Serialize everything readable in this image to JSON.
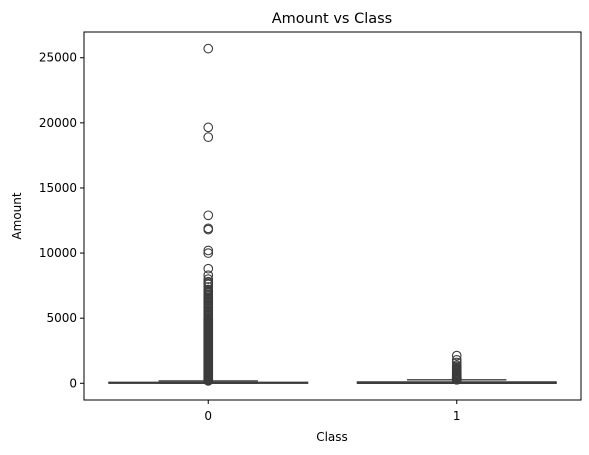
{
  "chart_data": {
    "type": "box",
    "title": "Amount vs Class",
    "xlabel": "Class",
    "ylabel": "Amount",
    "ylim": [
      -1284,
      26977
    ],
    "yticks": [
      0,
      5000,
      10000,
      15000,
      20000,
      25000
    ],
    "ytick_labels": [
      "0",
      "5000",
      "10000",
      "15000",
      "20000",
      "25000"
    ],
    "categories": [
      "0",
      "1"
    ],
    "grid": false,
    "boxes": [
      {
        "category": "0",
        "q1": 5.6,
        "median": 22,
        "q3": 77,
        "whisker_low": 0,
        "whisker_high": 185,
        "outliers": [
          186,
          200,
          250,
          300,
          350,
          400,
          450,
          500,
          550,
          600,
          650,
          700,
          750,
          800,
          850,
          900,
          950,
          1000,
          1050,
          1100,
          1150,
          1200,
          1250,
          1300,
          1350,
          1400,
          1450,
          1500,
          1550,
          1600,
          1650,
          1700,
          1750,
          1800,
          1850,
          1900,
          1950,
          2000,
          2050,
          2100,
          2150,
          2200,
          2250,
          2300,
          2350,
          2400,
          2450,
          2500,
          2550,
          2600,
          2650,
          2700,
          2750,
          2800,
          2850,
          2900,
          2950,
          3000,
          3050,
          3100,
          3150,
          3200,
          3250,
          3300,
          3350,
          3400,
          3450,
          3500,
          3550,
          3600,
          3650,
          3700,
          3750,
          3800,
          3850,
          3900,
          3950,
          4000,
          4050,
          4100,
          4150,
          4200,
          4250,
          4300,
          4350,
          4400,
          4450,
          4500,
          4550,
          4600,
          4650,
          4700,
          4750,
          4800,
          4850,
          4900,
          4950,
          5000,
          5100,
          5200,
          5300,
          5400,
          5500,
          5600,
          5700,
          5800,
          5900,
          6000,
          6100,
          6200,
          6300,
          6400,
          6500,
          6600,
          6700,
          6800,
          6900,
          7000,
          7100,
          7200,
          7400,
          7600,
          7700,
          7800,
          8000,
          8300,
          8800,
          10000,
          10200,
          11800,
          11900,
          12900,
          18900,
          19650,
          25700
        ]
      },
      {
        "category": "1",
        "q1": 1,
        "median": 9.3,
        "q3": 106,
        "whisker_low": 0,
        "whisker_high": 265,
        "outliers": [
          270,
          290,
          310,
          330,
          350,
          370,
          390,
          410,
          430,
          460,
          490,
          520,
          560,
          600,
          640,
          690,
          720,
          780,
          830,
          900,
          950,
          1000,
          1050,
          1100,
          1200,
          1300,
          1400,
          1600,
          1800,
          2125
        ]
      }
    ]
  }
}
